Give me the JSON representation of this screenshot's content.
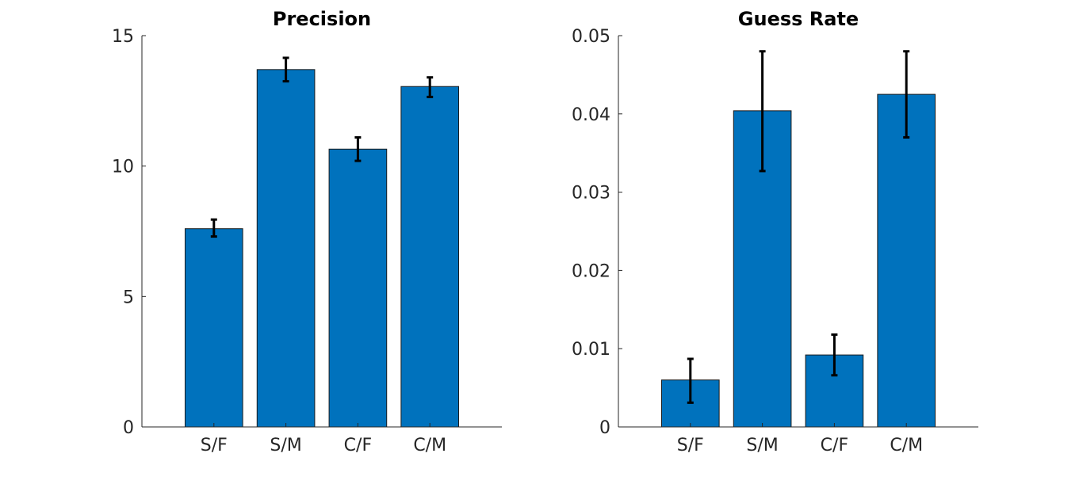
{
  "chart_data": [
    {
      "type": "bar",
      "title": "Precision",
      "categories": [
        "S/F",
        "S/M",
        "C/F",
        "C/M"
      ],
      "values": [
        7.6,
        13.7,
        10.65,
        13.05
      ],
      "error_low": [
        7.3,
        13.25,
        10.2,
        12.65
      ],
      "error_high": [
        7.95,
        14.15,
        11.1,
        13.4
      ],
      "xlabel": "",
      "ylabel": "",
      "ylim": [
        0,
        15
      ],
      "yticks": [
        0,
        5,
        10,
        15
      ],
      "ytick_labels": [
        "0",
        "5",
        "10",
        "15"
      ],
      "xlim": [
        0,
        5
      ],
      "grid": false,
      "bar_color": "#0072BD"
    },
    {
      "type": "bar",
      "title": "Guess Rate",
      "categories": [
        "S/F",
        "S/M",
        "C/F",
        "C/M"
      ],
      "values": [
        0.006,
        0.0404,
        0.0092,
        0.0425
      ],
      "error_low": [
        0.0031,
        0.0327,
        0.0066,
        0.037
      ],
      "error_high": [
        0.0087,
        0.048,
        0.0118,
        0.048
      ],
      "xlabel": "",
      "ylabel": "",
      "ylim": [
        0,
        0.05
      ],
      "yticks": [
        0,
        0.01,
        0.02,
        0.03,
        0.04,
        0.05
      ],
      "ytick_labels": [
        "0",
        "0.01",
        "0.02",
        "0.03",
        "0.04",
        "0.05"
      ],
      "xlim": [
        0,
        5
      ],
      "grid": false,
      "bar_color": "#0072BD"
    }
  ]
}
